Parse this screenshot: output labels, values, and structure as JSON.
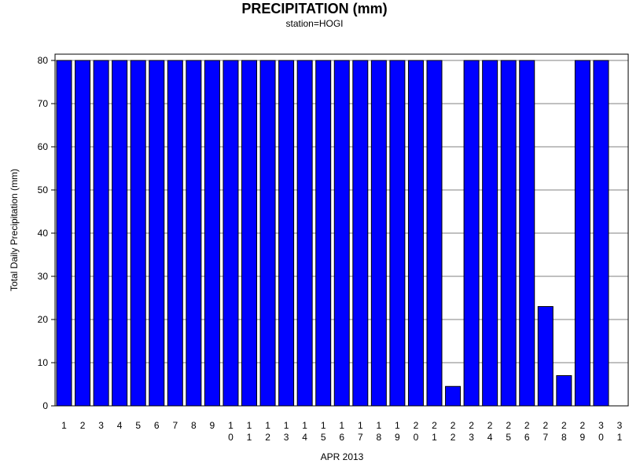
{
  "chart_data": {
    "type": "bar",
    "title": "PRECIPITATION (mm)",
    "subtitle": "station=HOGI",
    "xlabel": "APR 2013",
    "ylabel": "Total Daily Precipitation (mm)",
    "ylim": [
      0,
      80
    ],
    "yticks": [
      0,
      10,
      20,
      30,
      40,
      50,
      60,
      70,
      80
    ],
    "grid": true,
    "bar_color": "#0000ff",
    "categories": [
      "1",
      "2",
      "3",
      "4",
      "5",
      "6",
      "7",
      "8",
      "9",
      "10",
      "11",
      "12",
      "13",
      "14",
      "15",
      "16",
      "17",
      "18",
      "19",
      "20",
      "21",
      "22",
      "23",
      "24",
      "25",
      "26",
      "27",
      "28",
      "29",
      "30",
      "31"
    ],
    "values": [
      80,
      80,
      80,
      80,
      80,
      80,
      80,
      80,
      80,
      80,
      80,
      80,
      80,
      80,
      80,
      80,
      80,
      80,
      80,
      80,
      80,
      4.5,
      80,
      80,
      80,
      80,
      23,
      7,
      80,
      80,
      null
    ]
  }
}
